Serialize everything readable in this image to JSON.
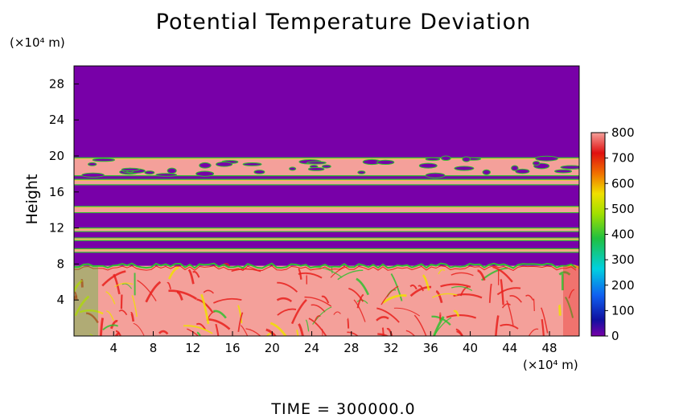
{
  "chart_data": {
    "type": "heatmap",
    "title": "Potential Temperature Deviation",
    "ylabel": "Height",
    "y_unit": "(×10⁴ m)",
    "x_unit": "(×10⁴ m)",
    "x_ticks": [
      "4",
      "8",
      "12",
      "16",
      "20",
      "24",
      "28",
      "32",
      "36",
      "40",
      "44",
      "48"
    ],
    "y_ticks": [
      "4",
      "8",
      "12",
      "16",
      "20",
      "24",
      "28"
    ],
    "xlim": [
      0,
      51
    ],
    "ylim": [
      0,
      30
    ],
    "colorbar": {
      "ticks": [
        "0",
        "100",
        "200",
        "300",
        "400",
        "500",
        "600",
        "700",
        "800"
      ],
      "range": [
        0,
        800
      ]
    },
    "colors": {
      "background": "#7800a8",
      "high": "#f4a09a",
      "red": "#e8201c",
      "yellow": "#f0e000",
      "green": "#30c030"
    },
    "regions": [
      {
        "label": "upper uniform layer",
        "y_range": [
          20,
          30
        ],
        "value": 0
      },
      {
        "label": "high-deviation band",
        "y_range": [
          17.8,
          19.8
        ],
        "value": 800
      },
      {
        "label": "thin band",
        "y_range": [
          16.8,
          17.4
        ],
        "value": 800
      },
      {
        "label": "thin band",
        "y_range": [
          13.7,
          14.4
        ],
        "value": 800
      },
      {
        "label": "thin band",
        "y_range": [
          11.6,
          12.0
        ],
        "value": 800
      },
      {
        "label": "thin band",
        "y_range": [
          10.6,
          10.9
        ],
        "value": 800
      },
      {
        "label": "thin band",
        "y_range": [
          9.3,
          9.7
        ],
        "value": 800
      },
      {
        "label": "lower turbulent layer",
        "y_range": [
          0,
          7.8
        ],
        "value": 800
      }
    ]
  },
  "footer": "TIME  =  300000.0"
}
